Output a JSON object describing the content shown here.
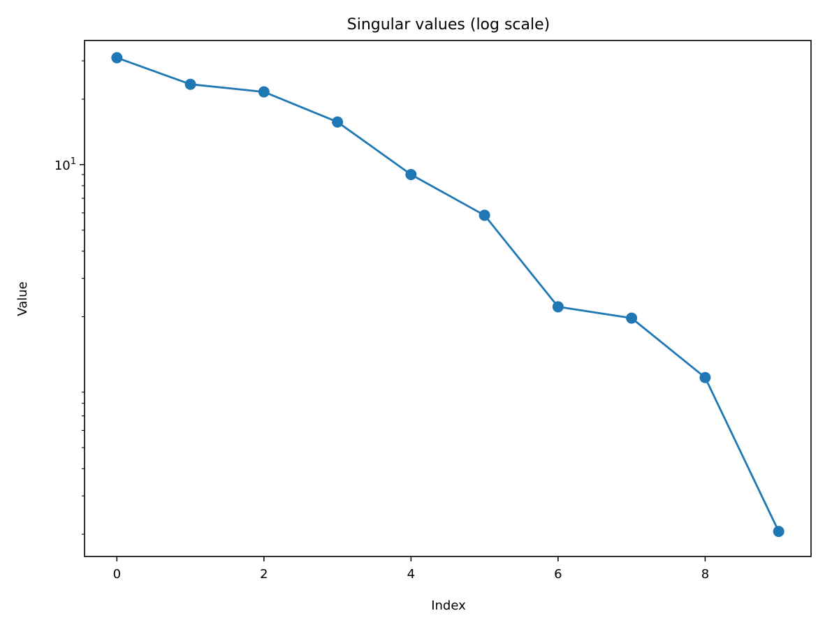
{
  "chart_data": {
    "type": "line",
    "title": "Singular values (log scale)",
    "xlabel": "Index",
    "ylabel": "Value",
    "x": [
      0,
      1,
      2,
      3,
      4,
      5,
      6,
      7,
      8,
      9
    ],
    "series": [
      {
        "values": [
          31.0,
          23.4,
          21.6,
          15.7,
          9.0,
          5.85,
          2.22,
          1.97,
          1.05,
          0.206
        ]
      }
    ],
    "xlim": [
      -0.44,
      9.44
    ],
    "ylim": [
      0.158,
      37.2
    ],
    "yscale": "log",
    "xticks": [
      0,
      2,
      4,
      6,
      8
    ],
    "xtick_labels": [
      "0",
      "2",
      "4",
      "6",
      "8"
    ],
    "ytick_base": "10",
    "ytick_exponent": "1",
    "ytick_value": 10,
    "grid": false,
    "legend": "none",
    "markers": "circle",
    "colors": {
      "line": "#1f77b4",
      "marker": "#1f77b4",
      "axes": "#000000"
    }
  }
}
